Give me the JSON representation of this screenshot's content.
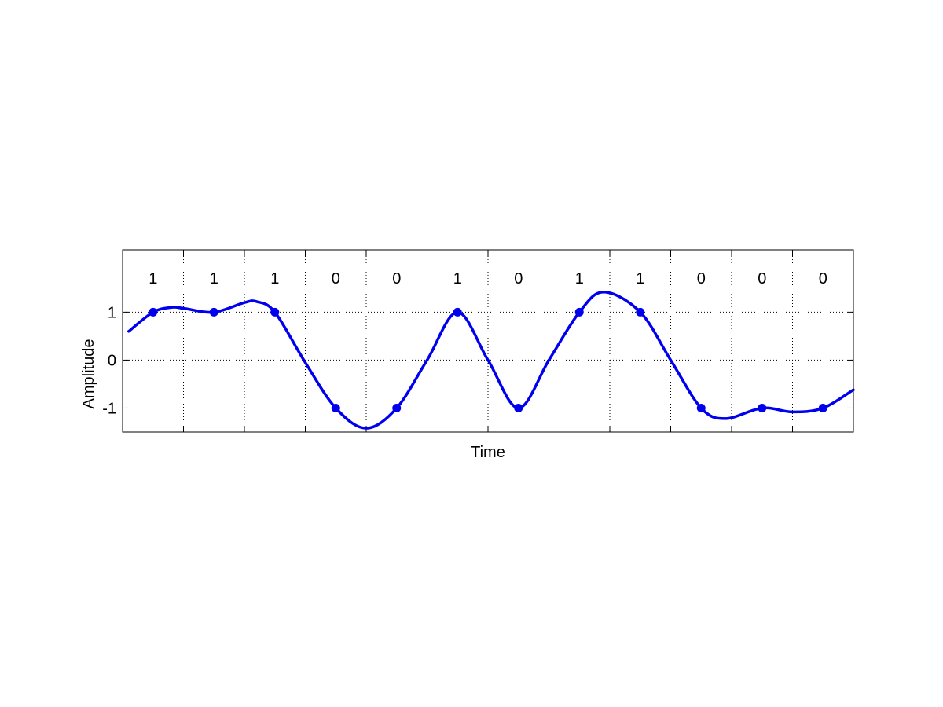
{
  "chart_data": {
    "type": "line",
    "xlabel": "Time",
    "ylabel": "Amplitude",
    "xlim": [
      0,
      12
    ],
    "ylim": [
      -1.5,
      2.3
    ],
    "yticks": [
      {
        "value": 1,
        "label": "1"
      },
      {
        "value": 0,
        "label": "0"
      },
      {
        "value": -1,
        "label": "-1"
      }
    ],
    "grid": true,
    "bits": [
      "1",
      "1",
      "1",
      "0",
      "0",
      "1",
      "0",
      "1",
      "1",
      "0",
      "0",
      "0"
    ],
    "samples": {
      "x": [
        0.5,
        1.5,
        2.5,
        3.5,
        4.5,
        5.5,
        6.5,
        7.5,
        8.5,
        9.5,
        10.5,
        11.5
      ],
      "y": [
        1,
        1,
        1,
        -1,
        -1,
        1,
        -1,
        1,
        1,
        -1,
        -1,
        -1
      ]
    },
    "series": [
      {
        "color": "#0000ee",
        "x": [
          0.1,
          0.5,
          0.8,
          1.0,
          1.5,
          2.0,
          2.2,
          2.5,
          3.0,
          3.5,
          4.0,
          4.5,
          5.0,
          5.5,
          6.0,
          6.5,
          7.0,
          7.5,
          7.9,
          8.5,
          9.0,
          9.5,
          9.9,
          10.5,
          11.0,
          11.5,
          12.0
        ],
        "y": [
          0.6,
          1.0,
          1.1,
          1.08,
          1.0,
          1.2,
          1.22,
          1.0,
          -0.05,
          -1.0,
          -1.42,
          -1.0,
          0.0,
          1.0,
          0.0,
          -1.0,
          0.0,
          1.0,
          1.42,
          1.0,
          0.0,
          -1.0,
          -1.22,
          -1.0,
          -1.08,
          -1.0,
          -0.62
        ]
      }
    ]
  }
}
